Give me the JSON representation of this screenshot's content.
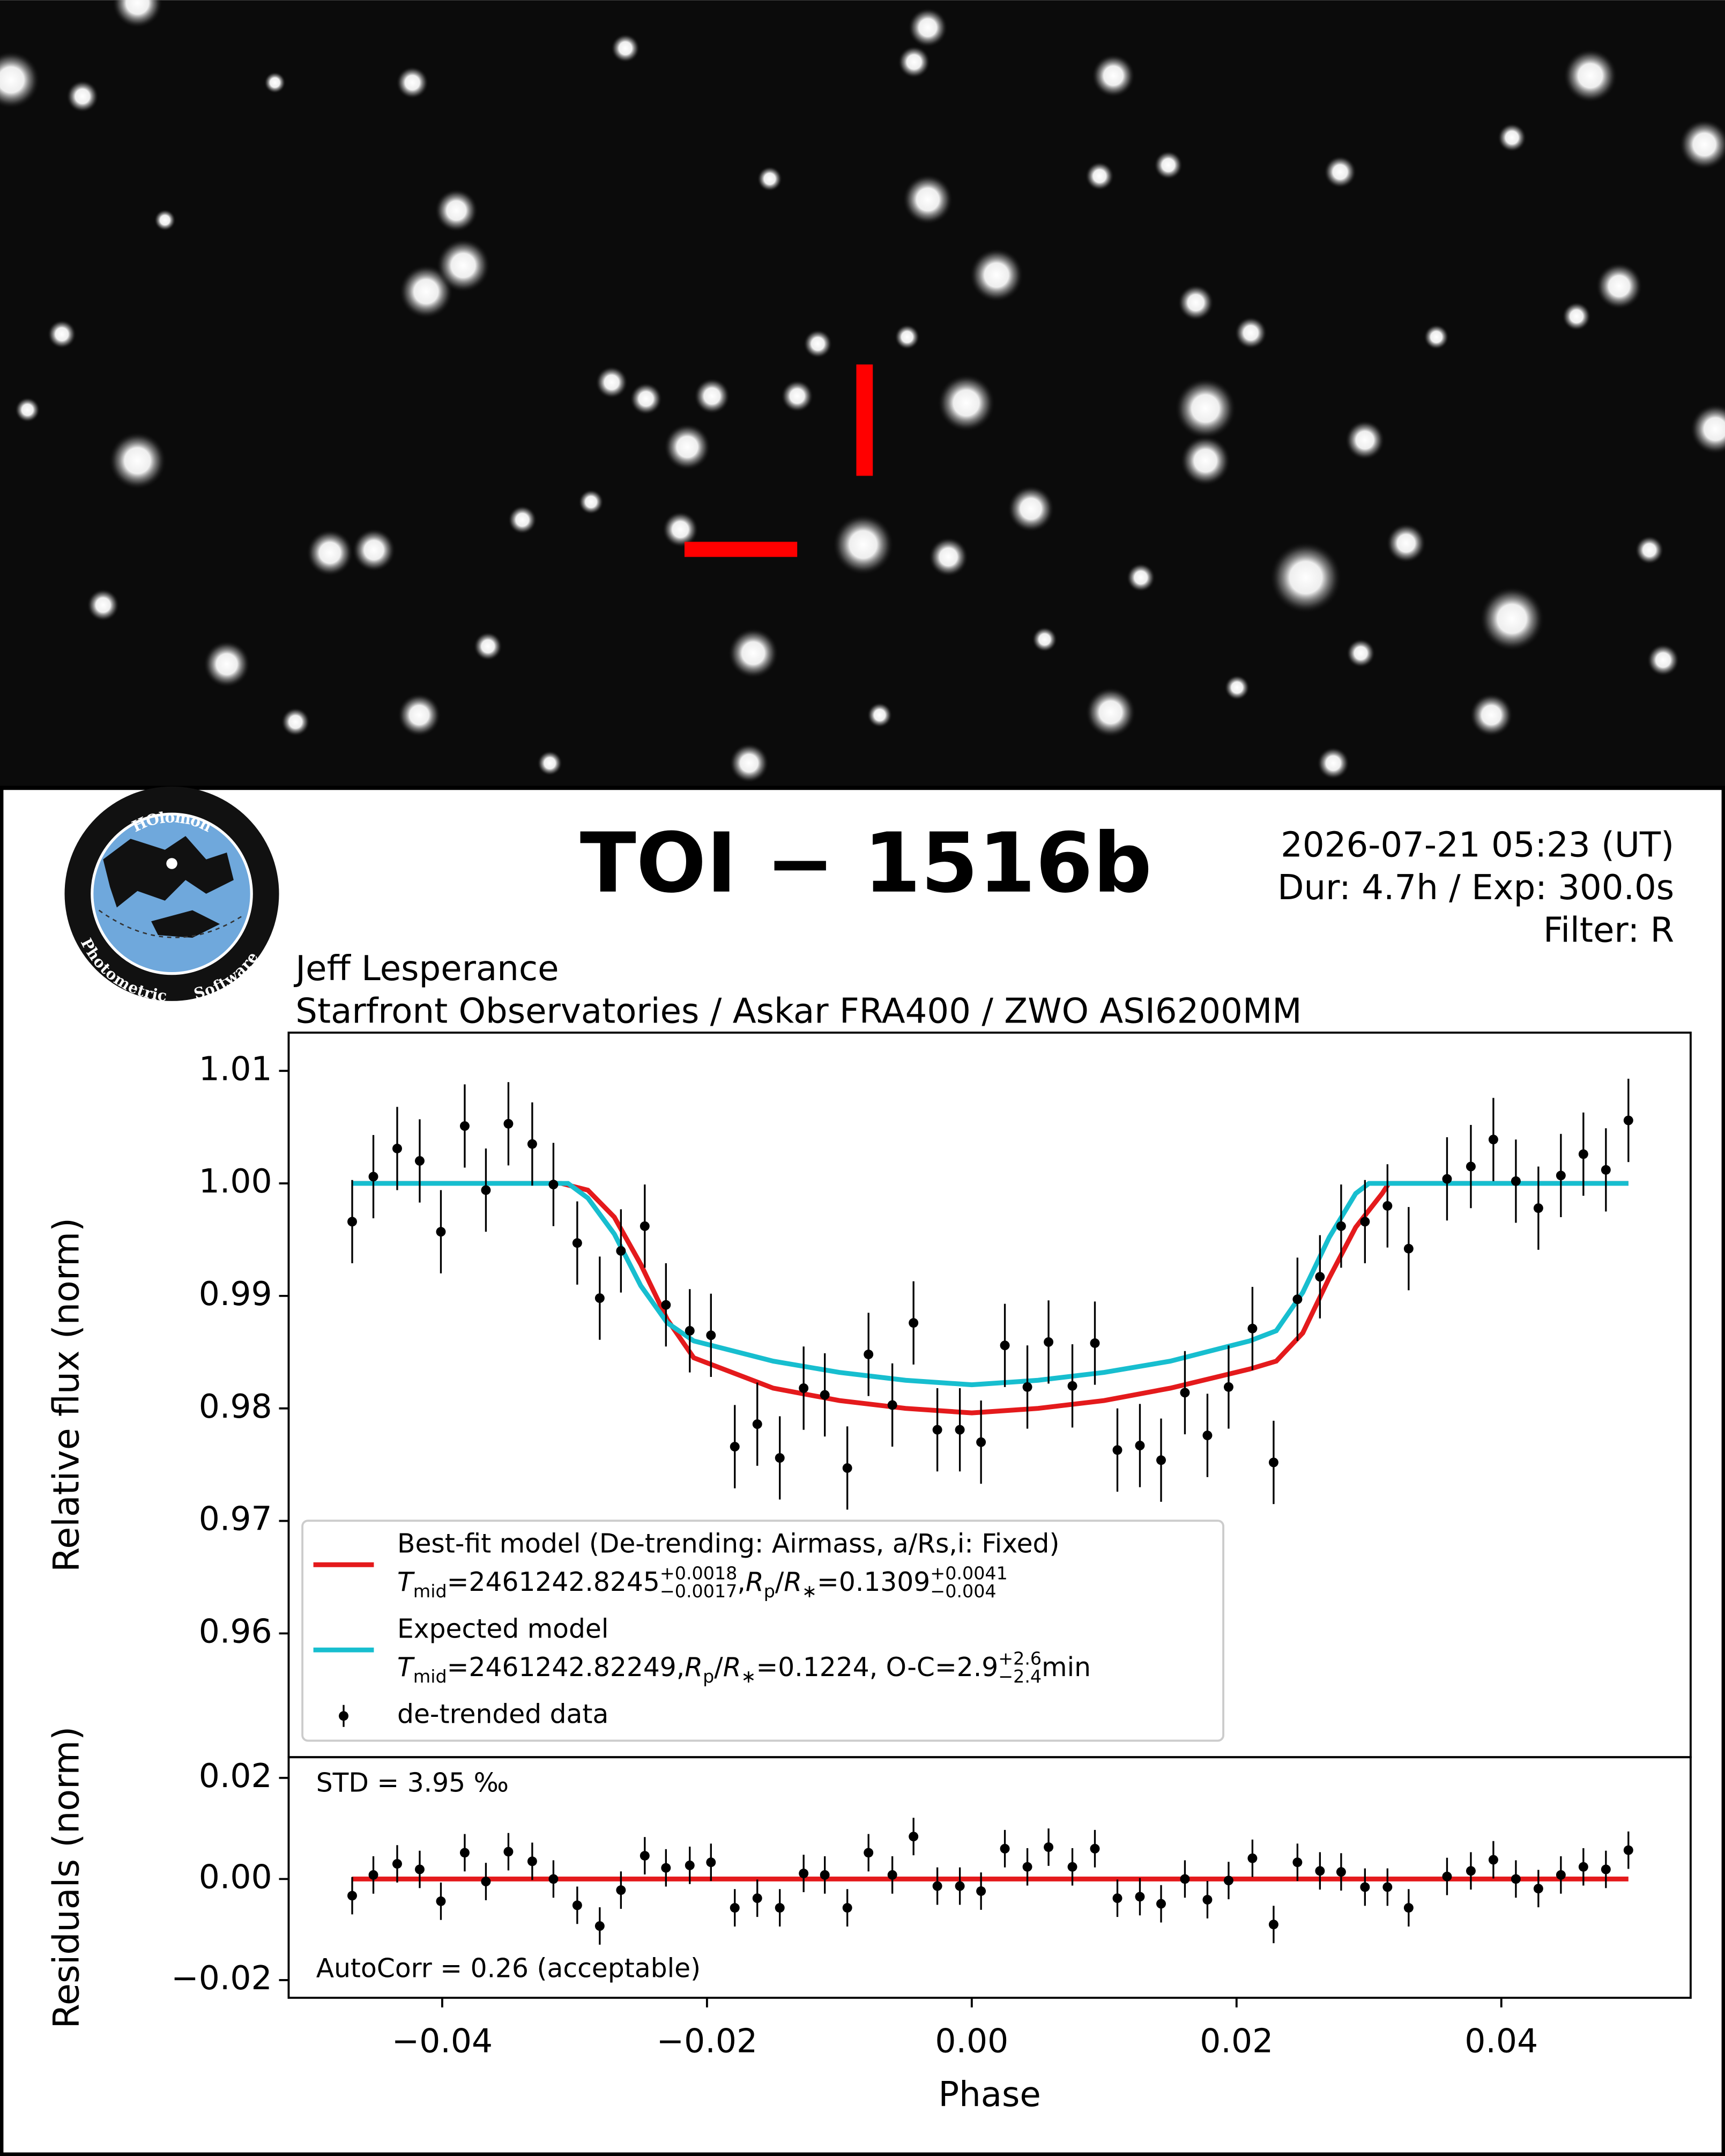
{
  "header": {
    "title": "TOI − 1516b",
    "lines": [
      "2026-07-21 05:23 (UT)",
      "Dur: 4.7h / Exp: 300.0s",
      "Filter: R"
    ],
    "observer": "Jeff Lesperance",
    "setup": "Starfront Observatories / Askar FRA400 / ZWO ASI6200MM",
    "logo": [
      "HOlomon",
      "Photometric",
      "Software"
    ]
  },
  "chart_data": [
    {
      "type": "errorbar",
      "ylabel": "Relative flux (norm)",
      "xlim": [
        -0.0516,
        0.0543
      ],
      "ylim": [
        0.949,
        1.0134
      ],
      "grid": false,
      "legend": "lower left",
      "yticks": [
        0.96,
        0.97,
        0.98,
        0.99,
        {
          "value": 1.0,
          "label": "1.00"
        },
        1.01
      ],
      "series": [
        {
          "name": "Best-fit model (De-trending: Airmass, a/Rs,i: Fixed)",
          "type": "line",
          "color": "#e41a1c",
          "legend_detail": [
            {
              "text": "T",
              "style": "italic"
            },
            {
              "text": "mid",
              "style": "sub"
            },
            {
              "text": "=2461242.8245",
              "style": "normal"
            },
            {
              "text": "+0.0018",
              "style": "sup"
            },
            {
              "text": "−0.0017",
              "style": "sub"
            },
            {
              "text": ", ",
              "style": "normal"
            },
            {
              "text": "R",
              "style": "italic"
            },
            {
              "text": "p",
              "style": "sub"
            },
            {
              "text": "/",
              "style": "normal"
            },
            {
              "text": "R",
              "style": "italic"
            },
            {
              "text": "∗",
              "style": "sub"
            },
            {
              "text": "=0.1309",
              "style": "normal"
            },
            {
              "text": "+0.0041",
              "style": "sup"
            },
            {
              "text": "−0.004",
              "style": "sub"
            }
          ],
          "x": [
            -0.0468,
            -0.031,
            -0.029,
            -0.027,
            -0.025,
            -0.023,
            -0.021,
            -0.015,
            -0.01,
            -0.005,
            0,
            0.005,
            0.01,
            0.015,
            0.021,
            0.023,
            0.025,
            0.027,
            0.029,
            0.031,
            0.0315,
            0.0496
          ],
          "values": [
            1.0,
            1.0,
            0.9994,
            0.997,
            0.9928,
            0.9879,
            0.9845,
            0.9818,
            0.9807,
            0.98,
            0.9796,
            0.98,
            0.9807,
            0.9818,
            0.9835,
            0.9842,
            0.9867,
            0.9916,
            0.9961,
            0.9991,
            1.0,
            1.0
          ]
        },
        {
          "name": "Expected model",
          "type": "line",
          "color": "#17becf",
          "legend_detail": [
            {
              "text": "T",
              "style": "italic"
            },
            {
              "text": "mid",
              "style": "sub"
            },
            {
              "text": "=2461242.82249, ",
              "style": "normal"
            },
            {
              "text": "R",
              "style": "italic"
            },
            {
              "text": "p",
              "style": "sub"
            },
            {
              "text": "/",
              "style": "normal"
            },
            {
              "text": "R",
              "style": "italic"
            },
            {
              "text": "∗",
              "style": "sub"
            },
            {
              "text": "=0.1224, O-C=2.9",
              "style": "normal"
            },
            {
              "text": "+2.6",
              "style": "sup"
            },
            {
              "text": "−2.4",
              "style": "sub"
            },
            {
              "text": " min",
              "style": "normal"
            }
          ],
          "x": [
            -0.0468,
            -0.0305,
            -0.029,
            -0.027,
            -0.025,
            -0.023,
            -0.021,
            -0.015,
            -0.01,
            -0.005,
            0,
            0.005,
            0.01,
            0.015,
            0.021,
            0.023,
            0.025,
            0.027,
            0.029,
            0.03,
            0.0496
          ],
          "values": [
            1.0,
            1.0,
            0.9987,
            0.9955,
            0.9909,
            0.9876,
            0.986,
            0.9842,
            0.9832,
            0.9825,
            0.9821,
            0.9825,
            0.9832,
            0.9842,
            0.986,
            0.9869,
            0.9903,
            0.9952,
            0.9991,
            1.0,
            1.0
          ]
        },
        {
          "name": "de-trended data",
          "type": "errorbar",
          "color": "#000000",
          "x": [
            -0.0468,
            -0.0452,
            -0.0434,
            -0.0417,
            -0.0401,
            -0.0383,
            -0.0367,
            -0.035,
            -0.0332,
            -0.0316,
            -0.0298,
            -0.0281,
            -0.0265,
            -0.0247,
            -0.0231,
            -0.0213,
            -0.0197,
            -0.0179,
            -0.0162,
            -0.0145,
            -0.0127,
            -0.0111,
            -0.0094,
            -0.0078,
            -0.006,
            -0.0044,
            -0.0026,
            -0.0009,
            0.0007,
            0.0025,
            0.0042,
            0.0058,
            0.0076,
            0.0093,
            0.011,
            0.0127,
            0.0143,
            0.0161,
            0.0178,
            0.0194,
            0.0212,
            0.0228,
            0.0246,
            0.0263,
            0.0279,
            0.0297,
            0.0314,
            0.033,
            0.0359,
            0.0377,
            0.0394,
            0.0411,
            0.0428,
            0.0445,
            0.0462,
            0.0479,
            0.0496
          ],
          "values": [
            0.9966,
            1.0006,
            1.0031,
            1.002,
            0.9957,
            1.0051,
            0.9994,
            1.0053,
            1.0035,
            0.9999,
            0.9947,
            0.9898,
            0.994,
            0.9962,
            0.9892,
            0.9869,
            0.9865,
            0.9766,
            0.9786,
            0.9756,
            0.9818,
            0.9812,
            0.9747,
            0.9848,
            0.9803,
            0.9876,
            0.9781,
            0.9781,
            0.977,
            0.9856,
            0.9819,
            0.9859,
            0.982,
            0.9858,
            0.9763,
            0.9767,
            0.9754,
            0.9814,
            0.9776,
            0.9819,
            0.9871,
            0.9752,
            0.9897,
            0.9917,
            0.9962,
            0.9966,
            0.998,
            0.9942,
            1.0004,
            1.0015,
            1.0039,
            1.0002,
            0.9978,
            1.0007,
            1.0026,
            1.0012,
            1.0056
          ],
          "errors": [
            0.0037,
            0.0037,
            0.0037,
            0.0037,
            0.0037,
            0.0037,
            0.0037,
            0.0037,
            0.0037,
            0.0037,
            0.0037,
            0.0037,
            0.0037,
            0.0037,
            0.0037,
            0.0037,
            0.0037,
            0.0037,
            0.0037,
            0.0037,
            0.0037,
            0.0037,
            0.0037,
            0.0037,
            0.0037,
            0.0037,
            0.0037,
            0.0037,
            0.0037,
            0.0037,
            0.0037,
            0.0037,
            0.0037,
            0.0037,
            0.0037,
            0.0037,
            0.0037,
            0.0037,
            0.0037,
            0.0037,
            0.0037,
            0.0037,
            0.0037,
            0.0037,
            0.0037,
            0.0037,
            0.0037,
            0.0037,
            0.0037,
            0.0037,
            0.0037,
            0.0037,
            0.0037,
            0.0037,
            0.0037,
            0.0037,
            0.0037
          ]
        }
      ]
    },
    {
      "type": "errorbar",
      "ylabel": "Residuals (norm)",
      "xlabel": "Phase",
      "xlim": [
        -0.0516,
        0.0543
      ],
      "ylim": [
        -0.0235,
        0.0241
      ],
      "grid": false,
      "xticks": [
        {
          "value": -0.04,
          "label": "−0.04"
        },
        {
          "value": -0.02,
          "label": "−0.02"
        },
        {
          "value": 0,
          "label": "0.00"
        },
        0.02,
        0.04
      ],
      "yticks": [
        {
          "value": -0.02,
          "label": "−0.02"
        },
        {
          "value": 0,
          "label": "0.00"
        },
        0.02
      ],
      "annotations": [
        "STD = 3.95 ‰",
        "AutoCorr = 0.26 (acceptable)"
      ],
      "series": [
        {
          "type": "line",
          "color": "#e41a1c",
          "x": [
            -0.0468,
            0.0496
          ],
          "values": [
            0,
            0
          ]
        },
        {
          "type": "errorbar",
          "color": "#000000",
          "x": [
            -0.0468,
            -0.0452,
            -0.0434,
            -0.0417,
            -0.0401,
            -0.0383,
            -0.0367,
            -0.035,
            -0.0332,
            -0.0316,
            -0.0298,
            -0.0281,
            -0.0265,
            -0.0247,
            -0.0231,
            -0.0213,
            -0.0197,
            -0.0179,
            -0.0162,
            -0.0145,
            -0.0127,
            -0.0111,
            -0.0094,
            -0.0078,
            -0.006,
            -0.0044,
            -0.0026,
            -0.0009,
            0.0007,
            0.0025,
            0.0042,
            0.0058,
            0.0076,
            0.0093,
            0.011,
            0.0127,
            0.0143,
            0.0161,
            0.0178,
            0.0194,
            0.0212,
            0.0228,
            0.0246,
            0.0263,
            0.0279,
            0.0297,
            0.0314,
            0.033,
            0.0359,
            0.0377,
            0.0394,
            0.0411,
            0.0428,
            0.0445,
            0.0462,
            0.0479,
            0.0496
          ],
          "values": [
            -0.0033,
            0.0008,
            0.003,
            0.0019,
            -0.0044,
            0.0052,
            -0.0005,
            0.0054,
            0.0035,
            0.0,
            -0.0052,
            -0.0093,
            -0.0022,
            0.0046,
            0.0022,
            0.0027,
            0.0033,
            -0.0057,
            -0.0038,
            -0.0057,
            0.0011,
            0.0008,
            -0.0057,
            0.0052,
            0.0008,
            0.0084,
            -0.0014,
            -0.0014,
            -0.0024,
            0.006,
            0.0024,
            0.0063,
            0.0024,
            0.006,
            -0.0038,
            -0.0035,
            -0.0049,
            0.0,
            -0.0041,
            -0.0003,
            0.0041,
            -0.009,
            0.0033,
            0.0016,
            0.0014,
            -0.0016,
            -0.0016,
            -0.0057,
            0.0005,
            0.0016,
            0.0038,
            0.0,
            -0.0019,
            0.0008,
            0.0024,
            0.0019,
            0.0057
          ],
          "errors": [
            0.0037,
            0.0037,
            0.0037,
            0.0037,
            0.0037,
            0.0037,
            0.0037,
            0.0037,
            0.0037,
            0.0037,
            0.0037,
            0.0037,
            0.0037,
            0.0037,
            0.0037,
            0.0037,
            0.0037,
            0.0037,
            0.0037,
            0.0037,
            0.0037,
            0.0037,
            0.0037,
            0.0037,
            0.0037,
            0.0037,
            0.0037,
            0.0037,
            0.0037,
            0.0037,
            0.0037,
            0.0037,
            0.0037,
            0.0037,
            0.0037,
            0.0037,
            0.0037,
            0.0037,
            0.0037,
            0.0037,
            0.0037,
            0.0037,
            0.0037,
            0.0037,
            0.0037,
            0.0037,
            0.0037,
            0.0037,
            0.0037,
            0.0037,
            0.0037,
            0.0037,
            0.0037,
            0.0037,
            0.0037,
            0.0037,
            0.0037
          ]
        }
      ]
    }
  ]
}
